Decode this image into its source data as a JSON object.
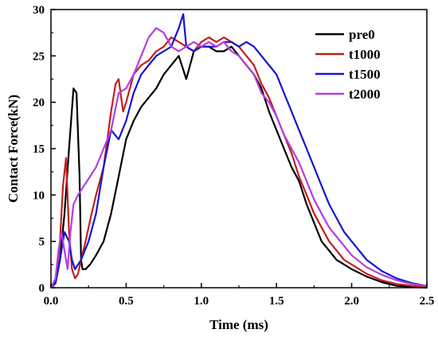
{
  "chart_data": {
    "type": "line",
    "title": "",
    "xlabel": "Time (ms)",
    "ylabel": "Contact Force(kN)",
    "xlim": [
      0.0,
      2.5
    ],
    "ylim": [
      0,
      30
    ],
    "x_ticks": [
      "0.0",
      "0.5",
      "1.0",
      "1.5",
      "2.0",
      "2.5"
    ],
    "y_ticks": [
      "0",
      "5",
      "10",
      "15",
      "20",
      "25",
      "30"
    ],
    "grid": false,
    "legend_position": "top-right",
    "series": [
      {
        "name": "pre0",
        "color": "#000000",
        "x": [
          0.0,
          0.03,
          0.06,
          0.09,
          0.12,
          0.15,
          0.17,
          0.19,
          0.2,
          0.21,
          0.23,
          0.26,
          0.3,
          0.35,
          0.4,
          0.45,
          0.5,
          0.55,
          0.6,
          0.65,
          0.7,
          0.75,
          0.8,
          0.85,
          0.9,
          0.95,
          1.0,
          1.05,
          1.1,
          1.15,
          1.2,
          1.25,
          1.3,
          1.35,
          1.4,
          1.45,
          1.5,
          1.55,
          1.6,
          1.65,
          1.7,
          1.75,
          1.8,
          1.85,
          1.9,
          1.95,
          2.0,
          2.1,
          2.2,
          2.3,
          2.4,
          2.5
        ],
        "y": [
          0,
          0.5,
          3,
          8,
          15,
          21.5,
          21,
          12,
          3,
          2,
          2,
          2.5,
          3.5,
          5,
          8,
          12,
          16,
          18,
          19.5,
          20.5,
          21.5,
          23,
          24,
          25,
          22.5,
          25.5,
          26,
          26,
          25.5,
          25.5,
          26,
          25,
          24,
          23,
          21.5,
          19,
          17,
          15,
          13,
          11.5,
          9,
          7,
          5,
          4,
          3,
          2.5,
          2,
          1.2,
          0.6,
          0.2,
          0.1,
          0
        ]
      },
      {
        "name": "t1000",
        "color": "#c0201e",
        "x": [
          0.0,
          0.03,
          0.06,
          0.08,
          0.1,
          0.12,
          0.14,
          0.16,
          0.18,
          0.2,
          0.23,
          0.27,
          0.3,
          0.35,
          0.4,
          0.43,
          0.45,
          0.48,
          0.5,
          0.55,
          0.6,
          0.65,
          0.7,
          0.75,
          0.8,
          0.85,
          0.9,
          0.95,
          1.0,
          1.05,
          1.1,
          1.15,
          1.2,
          1.25,
          1.3,
          1.35,
          1.4,
          1.45,
          1.5,
          1.55,
          1.6,
          1.65,
          1.7,
          1.75,
          1.8,
          1.85,
          1.9,
          1.95,
          2.0,
          2.1,
          2.2,
          2.3,
          2.4,
          2.5
        ],
        "y": [
          0,
          0.5,
          5,
          11,
          14,
          6,
          2,
          1,
          1.5,
          3,
          5,
          8,
          10,
          13,
          19,
          22,
          22.5,
          19,
          20,
          23,
          24,
          24.5,
          25.5,
          26,
          27,
          26.5,
          26,
          25.5,
          26.5,
          27,
          26.5,
          27,
          26.5,
          26,
          25,
          24,
          22,
          20.5,
          18.5,
          16.5,
          14.5,
          12,
          10,
          8,
          6.5,
          5,
          4,
          3,
          2.5,
          1.5,
          0.8,
          0.4,
          0.2,
          0.1
        ]
      },
      {
        "name": "t1500",
        "color": "#1515d2",
        "x": [
          0.0,
          0.03,
          0.06,
          0.09,
          0.12,
          0.14,
          0.16,
          0.18,
          0.2,
          0.25,
          0.3,
          0.35,
          0.4,
          0.45,
          0.5,
          0.55,
          0.6,
          0.65,
          0.7,
          0.75,
          0.8,
          0.85,
          0.88,
          0.9,
          0.95,
          1.0,
          1.05,
          1.1,
          1.15,
          1.2,
          1.25,
          1.3,
          1.35,
          1.4,
          1.45,
          1.5,
          1.55,
          1.6,
          1.65,
          1.7,
          1.75,
          1.8,
          1.85,
          1.9,
          1.95,
          2.0,
          2.1,
          2.2,
          2.3,
          2.4,
          2.5
        ],
        "y": [
          0,
          0.5,
          3,
          6,
          5,
          3,
          2,
          2.5,
          3,
          5,
          8,
          13,
          17,
          16,
          18,
          21,
          23,
          24,
          25,
          25.5,
          26,
          28,
          29.5,
          26,
          25.5,
          26,
          26,
          26,
          26.5,
          26.5,
          26,
          26.5,
          26,
          25,
          24,
          23,
          21,
          19,
          17,
          15,
          13,
          11,
          9,
          7.5,
          6,
          5,
          3,
          1.8,
          1,
          0.5,
          0.2
        ]
      },
      {
        "name": "t2000",
        "color": "#b53ee0",
        "x": [
          0.0,
          0.03,
          0.05,
          0.07,
          0.09,
          0.11,
          0.13,
          0.15,
          0.18,
          0.22,
          0.26,
          0.3,
          0.35,
          0.4,
          0.45,
          0.5,
          0.55,
          0.6,
          0.65,
          0.7,
          0.75,
          0.8,
          0.85,
          0.9,
          0.95,
          1.0,
          1.05,
          1.1,
          1.15,
          1.2,
          1.25,
          1.3,
          1.35,
          1.4,
          1.45,
          1.5,
          1.55,
          1.6,
          1.65,
          1.7,
          1.75,
          1.8,
          1.85,
          1.9,
          1.95,
          2.0,
          2.1,
          2.2,
          2.3,
          2.4,
          2.5
        ],
        "y": [
          0,
          1,
          4,
          6,
          4,
          2,
          6,
          9,
          10,
          11,
          12,
          13,
          15,
          17,
          21,
          21.5,
          23,
          25,
          27,
          28,
          27.5,
          26,
          25.5,
          26,
          26.5,
          26,
          26.5,
          26,
          26.5,
          25.5,
          25,
          24,
          23,
          21,
          20,
          18.5,
          16.5,
          15,
          13.5,
          11.5,
          9.5,
          8,
          6.5,
          5.5,
          4.5,
          3.5,
          2.2,
          1.4,
          0.8,
          0.4,
          0.2
        ]
      }
    ]
  }
}
